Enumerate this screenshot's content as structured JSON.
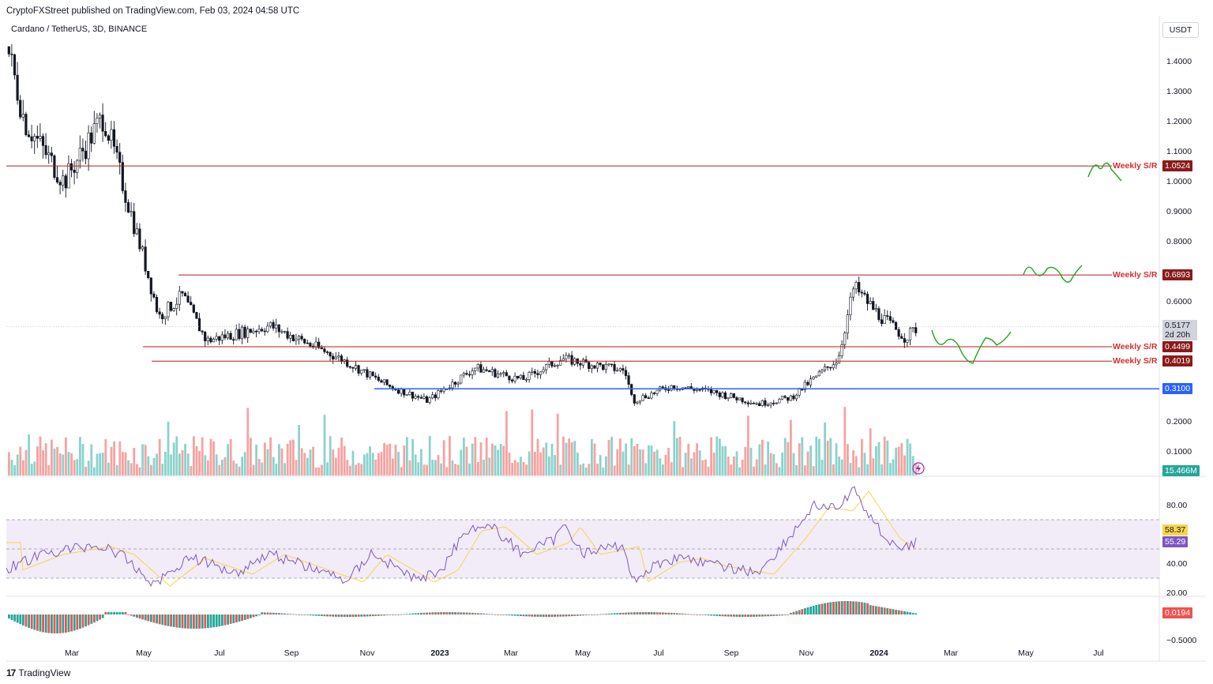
{
  "header": {
    "published": "CryptoFXStreet published on TradingView.com, Feb 03, 2024 04:58 UTC",
    "symbol": "Cardano / TetherUS, 3D, BINANCE"
  },
  "footer": {
    "brand": "TradingView",
    "mark": "17"
  },
  "price_axis": {
    "currency": "USDT",
    "ticks": [
      "1.4000",
      "1.3000",
      "1.2000",
      "1.1000",
      "1.0000",
      "0.9000",
      "0.8000",
      "0.6000",
      "0.2000",
      "0.1000"
    ],
    "current_price": "0.5177",
    "countdown": "2d 20h",
    "volume_label": "15.466M"
  },
  "rsi_axis": {
    "ticks": [
      "80.00",
      "40.00",
      "20.00"
    ],
    "rsi_ma": "58.37",
    "rsi": "55.29"
  },
  "macd_axis": {
    "ticks": [
      "−0.5000"
    ],
    "value": "0.0194"
  },
  "x_axis": [
    "Mar",
    "May",
    "Jul",
    "Sep",
    "Nov",
    "2023",
    "Mar",
    "May",
    "Jul",
    "Sep",
    "Nov",
    "2024",
    "Mar",
    "May",
    "Jul"
  ],
  "levels": [
    {
      "label": "Weekly S/R",
      "value": "1.0524",
      "price": 1.0524,
      "color": "#8b1a1a"
    },
    {
      "label": "Weekly S/R",
      "value": "0.6893",
      "price": 0.6893,
      "color": "#8b1a1a"
    },
    {
      "label": "Weekly S/R",
      "value": "0.4499",
      "price": 0.4499,
      "color": "#8b1a1a"
    },
    {
      "label": "Weekly S/R",
      "value": "0.4019",
      "price": 0.4019,
      "color": "#8b1a1a"
    },
    {
      "value": "0.3100",
      "price": 0.31,
      "color": "#2962ff"
    }
  ],
  "colors": {
    "up": "#26a69a",
    "down": "#ef5350",
    "candle": "#131722",
    "rsi": "#7e57c2",
    "rsi_ma": "#f7d54a",
    "sr_line": "#b71c1c",
    "support": "#2962ff",
    "annotation": "#22a322"
  },
  "chart_data": {
    "type": "line",
    "symbol": "Cardano / TetherUS, 3D, BINANCE",
    "x": [
      "2022-01",
      "2022-03",
      "2022-05",
      "2022-07",
      "2022-09",
      "2022-11",
      "2023-01",
      "2023-03",
      "2023-05",
      "2023-07",
      "2023-09",
      "2023-11",
      "2023-12",
      "2024-02"
    ],
    "series": [
      {
        "values": [
          1.45,
          1.05,
          0.75,
          0.48,
          0.47,
          0.36,
          0.27,
          0.39,
          0.42,
          0.3,
          0.26,
          0.38,
          0.62,
          0.5177
        ]
      }
    ],
    "ylim": [
      -0.5,
      1.5
    ],
    "levels": [
      1.0524,
      0.6893,
      0.4499,
      0.4019,
      0.31
    ]
  }
}
